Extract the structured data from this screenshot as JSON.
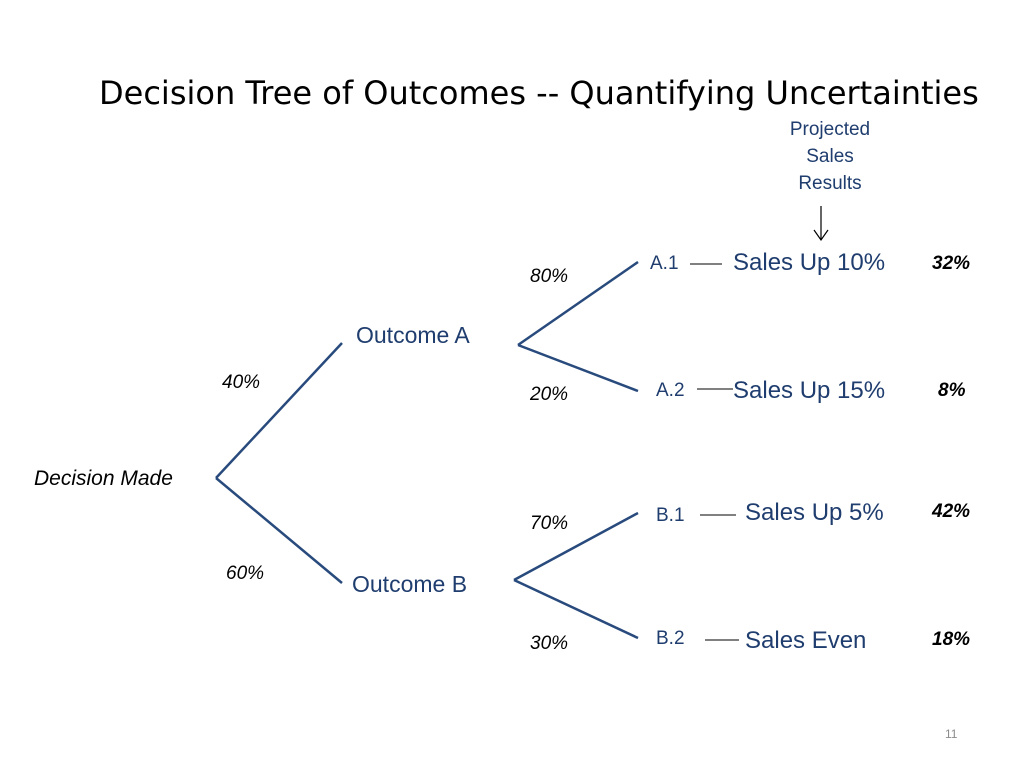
{
  "title": "Decision Tree of Outcomes -- Quantifying Uncertainties",
  "projected_label": [
    "Projected",
    "Sales",
    "Results"
  ],
  "root": "Decision Made",
  "branches": [
    {
      "probability": "40%",
      "outcome": "Outcome A",
      "leaves": [
        {
          "probability": "80%",
          "code": "A.1",
          "result": "Sales Up 10%",
          "combined": "32%"
        },
        {
          "probability": "20%",
          "code": "A.2",
          "result": "Sales Up 15%",
          "combined": "8%"
        }
      ]
    },
    {
      "probability": "60%",
      "outcome": "Outcome B",
      "leaves": [
        {
          "probability": "70%",
          "code": "B.1",
          "result": "Sales Up 5%",
          "combined": "42%"
        },
        {
          "probability": "30%",
          "code": "B.2",
          "result": "Sales Even",
          "combined": "18%"
        }
      ]
    }
  ],
  "slide_number": "11",
  "colors": {
    "line": "#284a7c",
    "text_blue": "#1f3d6e"
  }
}
